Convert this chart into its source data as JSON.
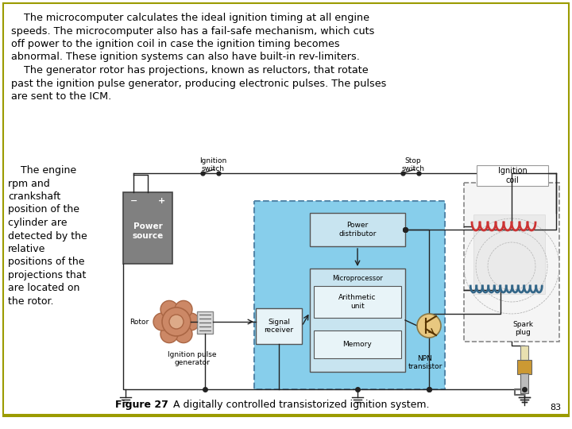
{
  "bg_color": "#ffffff",
  "border_color": "#9B9B00",
  "page_num": "83",
  "paragraph1_indent": "    The microcomputer calculates the ideal ignition timing at all engine",
  "paragraph1_rest": "speeds. The microcomputer also has a fail-safe mechanism, which cuts\noff power to the ignition coil in case the ignition timing becomes\nabnormal. These ignition systems can also have built-in rev-limiters.",
  "paragraph2_indent": "    The generator rotor has projections, known as reluctors, that rotate",
  "paragraph2_rest": "past the ignition pulse generator, producing electronic pulses. The pulses\nare sent to the ICM.",
  "para_left_indent": "    The engine\nrpm and\ncrankshaft\nposition of the\ncylinder are\ndetected by the\nrelative\npositions of the\nprojections that\nare located on\nthe rotor.",
  "caption_bold": "Figure 27",
  "caption_normal": " A digitally controlled transistorized ignition system.",
  "diagram": {
    "icm_bg": "#87ceeb",
    "icm_border": "#5588aa",
    "ps_gray": "#808080",
    "ps_dark": "#606060",
    "rotor_main": "#cc8866",
    "rotor_dark": "#aa6644",
    "rotor_light": "#ddaa88",
    "box_light": "#c8e4f0",
    "box_white": "#e8f4f8",
    "ic_bg": "#f0f0f0",
    "line_color": "#222222",
    "coil1_color": "#cc3333",
    "coil2_color": "#336688",
    "npn_color": "#e8c880",
    "npn_border": "#887744",
    "spark_gold": "#cc9933",
    "label_ignition_switch": "Ignition\nswitch",
    "label_stop_switch": "Stop\nswitch",
    "label_power_source": "Power\nsource",
    "label_rotor": "Rotor",
    "label_ignition_pulse": "Ignition pulse\ngenerator",
    "label_signal_receiver": "Signal\nreceiver",
    "label_power_distributor": "Power\ndistributor",
    "label_microprocessor": "Microprocessor",
    "label_arithmetic": "Arithmetic\nunit",
    "label_memory": "Memory",
    "label_npn": "NPN\ntransistor",
    "label_spark_plug": "Spark\nplug",
    "label_ignition_coil": "Ignition\ncoil"
  }
}
